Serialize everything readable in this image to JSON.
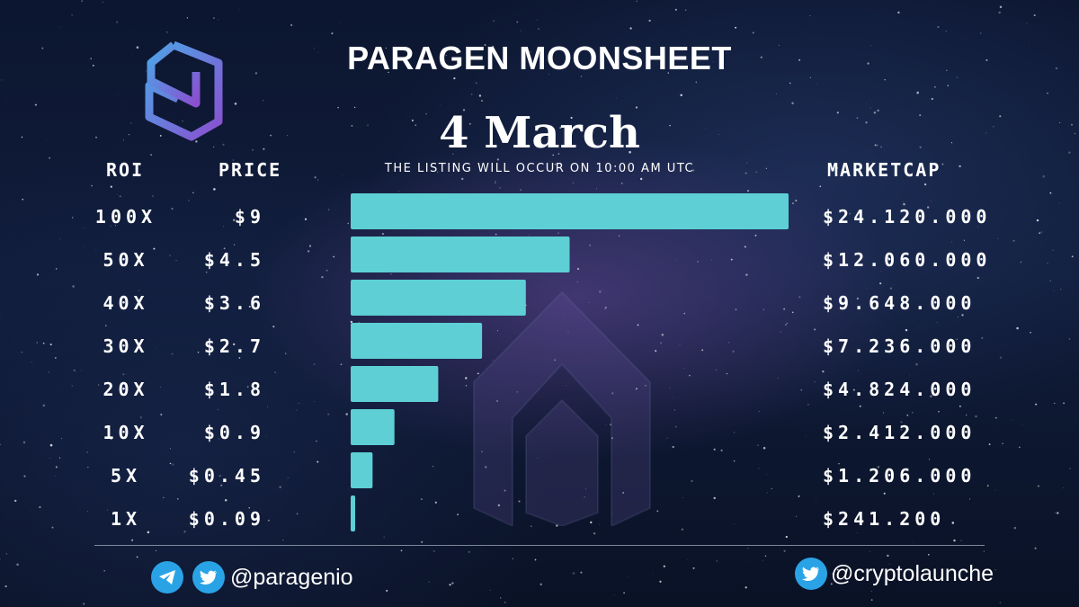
{
  "header": {
    "title": "PARAGEN MOONSHEET",
    "date": "4 March",
    "subtitle": "THE LISTING WILL OCCUR ON 10:00 AM UTC"
  },
  "columns": {
    "roi": "ROI",
    "price": "PRICE",
    "marketcap": "MARKETCAP"
  },
  "rows": [
    {
      "roi": "100X",
      "price": "$9",
      "marketcap": "$24.120.000"
    },
    {
      "roi": "50X",
      "price": "$4.5",
      "marketcap": "$12.060.000"
    },
    {
      "roi": "40X",
      "price": "$3.6",
      "marketcap": "$9.648.000"
    },
    {
      "roi": "30X",
      "price": "$2.7",
      "marketcap": "$7.236.000"
    },
    {
      "roi": "20X",
      "price": "$1.8",
      "marketcap": "$4.824.000"
    },
    {
      "roi": "10X",
      "price": "$0.9",
      "marketcap": "$2.412.000"
    },
    {
      "roi": "5X",
      "price": "$0.45",
      "marketcap": "$1.206.000"
    },
    {
      "roi": "1X",
      "price": "$0.09",
      "marketcap": "$241.200"
    }
  ],
  "chart_data": {
    "type": "bar",
    "orientation": "horizontal",
    "categories": [
      "100X",
      "50X",
      "40X",
      "30X",
      "20X",
      "10X",
      "5X",
      "1X"
    ],
    "values": [
      100,
      50,
      40,
      30,
      20,
      10,
      5,
      1
    ],
    "xlim": [
      0,
      100
    ],
    "grid": false,
    "bar_color": "#5ecfd4"
  },
  "footer": {
    "left_handle": "@paragenio",
    "right_handle": "@cryptolaunche",
    "left_icons": [
      "telegram-icon",
      "twitter-icon"
    ],
    "right_icons": [
      "twitter-icon"
    ]
  },
  "colors": {
    "accent": "#5ecfd4",
    "social": "#2aa3e6",
    "logo_gradient": [
      "#4aa8e8",
      "#8a4fd0"
    ]
  }
}
